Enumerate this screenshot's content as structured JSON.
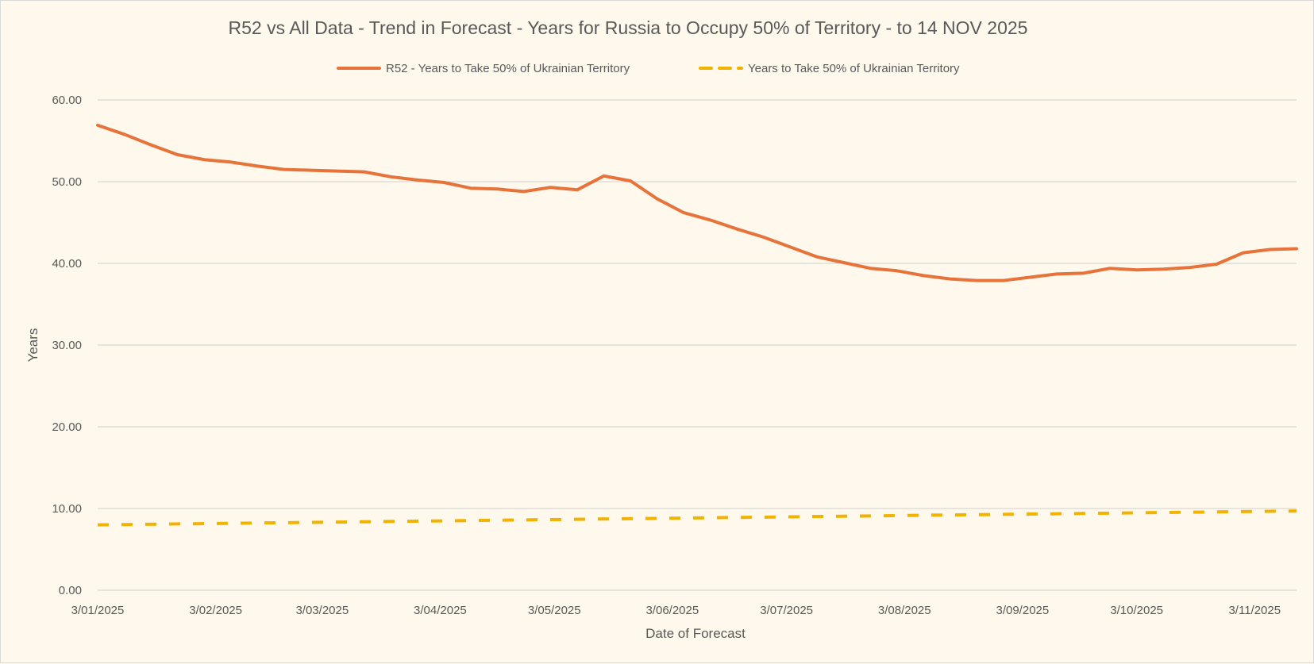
{
  "chart_data": {
    "type": "line",
    "title": "R52 vs All Data  - Trend in Forecast - Years for Russia to Occupy 50% of Territory - to 14 NOV 2025",
    "xlabel": "Date of Forecast",
    "ylabel": "Years",
    "ylim": [
      0,
      60
    ],
    "y_ticks": [
      "0.00",
      "10.00",
      "20.00",
      "30.00",
      "40.00",
      "50.00",
      "60.00"
    ],
    "x_tick_labels": [
      "3/01/2025",
      "3/02/2025",
      "3/03/2025",
      "3/04/2025",
      "3/05/2025",
      "3/06/2025",
      "3/07/2025",
      "3/08/2025",
      "3/09/2025",
      "3/10/2025",
      "3/11/2025"
    ],
    "xlim": [
      "2025-01-03",
      "2025-11-14"
    ],
    "grid": true,
    "legend_position": "top",
    "series": [
      {
        "name": "R52 - Years to Take  50% of Ukrainian Territory",
        "color": "#e8733a",
        "style": "solid",
        "x": [
          "2025-01-03",
          "2025-01-10",
          "2025-01-17",
          "2025-01-24",
          "2025-01-31",
          "2025-02-07",
          "2025-02-14",
          "2025-02-21",
          "2025-02-28",
          "2025-03-07",
          "2025-03-14",
          "2025-03-21",
          "2025-03-28",
          "2025-04-04",
          "2025-04-11",
          "2025-04-18",
          "2025-04-25",
          "2025-05-02",
          "2025-05-09",
          "2025-05-16",
          "2025-05-23",
          "2025-05-30",
          "2025-06-06",
          "2025-06-13",
          "2025-06-20",
          "2025-06-27",
          "2025-07-04",
          "2025-07-11",
          "2025-07-18",
          "2025-07-25",
          "2025-08-01",
          "2025-08-08",
          "2025-08-15",
          "2025-08-22",
          "2025-08-29",
          "2025-09-05",
          "2025-09-12",
          "2025-09-19",
          "2025-09-26",
          "2025-10-03",
          "2025-10-10",
          "2025-10-17",
          "2025-10-24",
          "2025-10-31",
          "2025-11-07",
          "2025-11-14"
        ],
        "y": [
          56.9,
          55.8,
          54.5,
          53.3,
          52.7,
          52.4,
          51.9,
          51.5,
          51.4,
          51.3,
          51.2,
          50.6,
          50.2,
          49.9,
          49.2,
          49.1,
          48.8,
          49.3,
          49.0,
          50.7,
          50.1,
          47.9,
          46.2,
          45.3,
          44.2,
          43.2,
          42.0,
          40.8,
          40.1,
          39.4,
          39.1,
          38.5,
          38.1,
          37.9,
          37.9,
          38.3,
          38.7,
          38.8,
          39.4,
          39.2,
          39.3,
          39.5,
          39.9,
          41.3,
          41.7,
          41.8
        ]
      },
      {
        "name": "Years to Take  50% of Ukrainian Territory",
        "color": "#f2b200",
        "style": "dashed",
        "x": [
          "2025-01-03",
          "2025-11-14"
        ],
        "y": [
          8.0,
          9.7
        ]
      }
    ]
  }
}
